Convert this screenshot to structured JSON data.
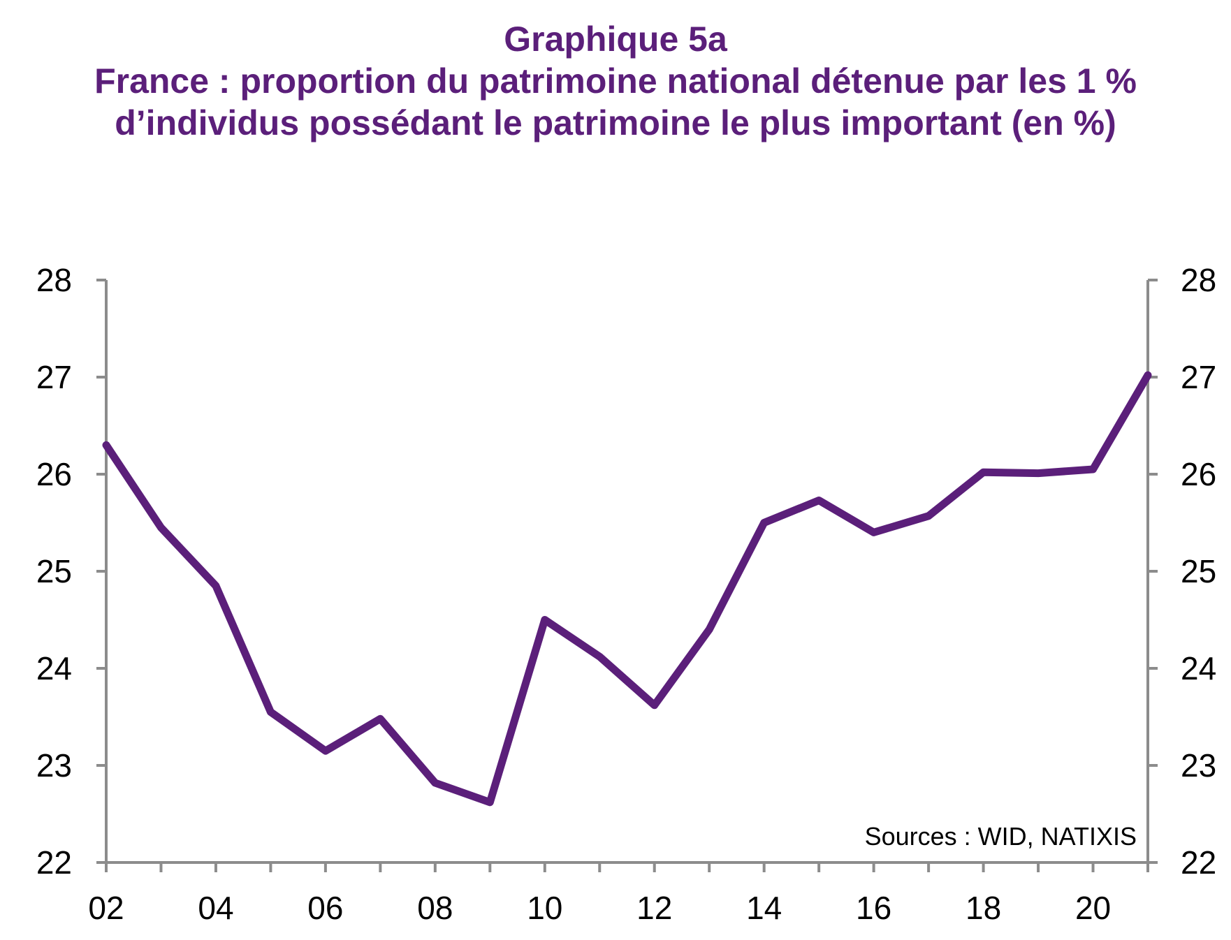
{
  "title": "Graphique 5a",
  "subtitle_lines": [
    "France : proportion du patrimoine national détenue par les 1 %",
    "d’individus possédant le patrimoine le plus important (en %)"
  ],
  "source": "Sources :  WID, NATIXIS",
  "colors": {
    "title": "#5b1f7a",
    "line": "#5b1f7a",
    "axis": "#8c8c8c"
  },
  "chart_data": {
    "type": "line",
    "title": "Graphique 5a",
    "subtitle": "France : proportion du patrimoine national détenue par les 1 % d’individus possédant le patrimoine le plus important (en %)",
    "xlabel": "",
    "ylabel": "",
    "x": [
      2002,
      2003,
      2004,
      2005,
      2006,
      2007,
      2008,
      2009,
      2010,
      2011,
      2012,
      2013,
      2014,
      2015,
      2016,
      2017,
      2018,
      2019,
      2020,
      2021
    ],
    "x_tick_values": [
      2002,
      2004,
      2006,
      2008,
      2010,
      2012,
      2014,
      2016,
      2018,
      2020
    ],
    "x_tick_labels": [
      "02",
      "04",
      "06",
      "08",
      "10",
      "12",
      "14",
      "16",
      "18",
      "20"
    ],
    "xlim": [
      2002,
      2021
    ],
    "ylim": [
      22,
      28
    ],
    "y_ticks": [
      22,
      23,
      24,
      25,
      26,
      27,
      28
    ],
    "y_tick_labels": [
      "22",
      "23",
      "24",
      "25",
      "26",
      "27",
      "28"
    ],
    "y_tick_labels_right": [
      "22",
      "23",
      "24",
      "25",
      "26",
      "27",
      "28"
    ],
    "grid": false,
    "series": [
      {
        "values": [
          26.3,
          25.45,
          24.85,
          23.55,
          23.15,
          23.48,
          22.82,
          22.62,
          24.5,
          24.12,
          23.62,
          24.4,
          25.5,
          25.73,
          25.4,
          25.57,
          26.02,
          26.01,
          26.05,
          27.02
        ],
        "color": "#5b1f7a"
      }
    ]
  }
}
